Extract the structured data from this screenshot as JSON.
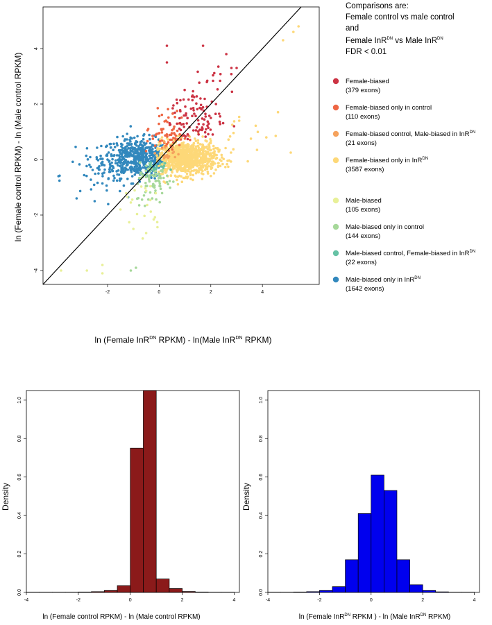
{
  "chart_data": [
    {
      "type": "scatter",
      "xlabel": "ln (Female InR DN RPKM) - ln(Male InR DN RPKM)",
      "ylabel": "ln (Female control RPKM) - ln (Male control RPKM)",
      "xlim": [
        -4.5,
        6.2
      ],
      "ylim": [
        -4.5,
        5.5
      ],
      "xticks": [
        "-2",
        "0",
        "2",
        "4"
      ],
      "yticks": [
        "-4",
        "-2",
        "0",
        "2",
        "4"
      ],
      "diagonal": "y = x",
      "comparison": {
        "line1": "Comparisons are:",
        "line2": "Female control vs male control",
        "line3": "and",
        "line4_a": "Female InR",
        "line4_sup1": "DN",
        "line4_b": " vs Male InR",
        "line4_sup2": "DN",
        "line5": "FDR < 0.01"
      },
      "series": [
        {
          "name": "Female-biased",
          "count": "(379 exons)",
          "color": "#cc3344",
          "sup": ""
        },
        {
          "name": "Female-biased only in control",
          "count": "(110 exons)",
          "color": "#ee6644",
          "sup": ""
        },
        {
          "name": "Female-biased control, Male-biased in InR",
          "count": "(21 exons)",
          "color": "#f5a25d",
          "sup": "DN"
        },
        {
          "name": "Female-biased only in InR",
          "count": "(3587 exons)",
          "color": "#fdd878",
          "sup": "DN"
        },
        {
          "name": "Male-biased",
          "count": "(105 exons)",
          "color": "#e8f098",
          "sup": ""
        },
        {
          "name": "Male-biased only in control",
          "count": "(144 exons)",
          "color": "#a6d89a",
          "sup": ""
        },
        {
          "name": "Male-biased control, Female-biased in InR",
          "count": "(22 exons)",
          "color": "#66c2a5",
          "sup": "DN"
        },
        {
          "name": "Male-biased only in InR",
          "count": "(1642 exons)",
          "color": "#3288bd",
          "sup": "DN"
        }
      ]
    },
    {
      "type": "bar",
      "title": "",
      "xlabel": "ln (Female control RPKM)  - ln (Male control RPKM)",
      "ylabel": "Density",
      "color": "#8b1a1a",
      "xlim": [
        -4,
        4.2
      ],
      "ylim": [
        0,
        1.05
      ],
      "xticks": [
        "-4",
        "-2",
        "0",
        "2",
        "4"
      ],
      "yticks": [
        "0.0",
        "0.2",
        "0.4",
        "0.6",
        "0.8",
        "1.0"
      ],
      "bin_width": 0.5,
      "bin_starts": [
        -4,
        -3.5,
        -3,
        -2.5,
        -2,
        -1.5,
        -1,
        -0.5,
        0,
        0.5,
        1,
        1.5,
        2,
        2.5,
        3,
        3.5
      ],
      "values": [
        0.001,
        0.001,
        0.001,
        0.001,
        0.002,
        0.004,
        0.01,
        0.035,
        0.75,
        1.05,
        0.07,
        0.02,
        0.005,
        0.002,
        0.001,
        0.001
      ]
    },
    {
      "type": "bar",
      "title": "",
      "xlabel_a": "ln (Female InR",
      "xlabel_sup1": "DN",
      "xlabel_b": " RPKM ) - ln (Male InR",
      "xlabel_sup2": "DN",
      "xlabel_c": " RPKM)",
      "ylabel": "Density",
      "color": "#0000ee",
      "xlim": [
        -4,
        4.2
      ],
      "ylim": [
        0,
        1.05
      ],
      "xticks": [
        "-4",
        "-2",
        "0",
        "2",
        "4"
      ],
      "yticks": [
        "0.0",
        "0.2",
        "0.4",
        "0.6",
        "0.8",
        "1.0"
      ],
      "bin_width": 0.5,
      "bin_starts": [
        -4,
        -3.5,
        -3,
        -2.5,
        -2,
        -1.5,
        -1,
        -0.5,
        0,
        0.5,
        1,
        1.5,
        2,
        2.5,
        3,
        3.5
      ],
      "values": [
        0.001,
        0.001,
        0.002,
        0.004,
        0.01,
        0.03,
        0.17,
        0.41,
        0.61,
        0.53,
        0.17,
        0.04,
        0.01,
        0.003,
        0.001,
        0.001
      ]
    }
  ]
}
